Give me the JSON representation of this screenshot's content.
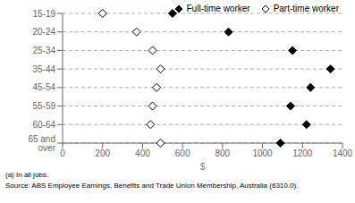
{
  "chart_data": {
    "type": "dot",
    "orientation": "horizontal",
    "categories": [
      "15-19",
      "20-24",
      "25-34",
      "35-44",
      "45-54",
      "55-59",
      "60-64",
      "65 and over"
    ],
    "series": [
      {
        "name": "Full-time worker",
        "color": "black",
        "marker": "diamond",
        "values": [
          550,
          830,
          1150,
          1340,
          1240,
          1140,
          1220,
          1090
        ]
      },
      {
        "name": "Part-time worker",
        "color": "white",
        "marker": "diamond",
        "values": [
          200,
          370,
          450,
          490,
          470,
          450,
          440,
          490
        ]
      }
    ],
    "xlabel": "$",
    "xlim": [
      0,
      1400
    ],
    "xticks": [
      0,
      200,
      400,
      600,
      800,
      1000,
      1200,
      1400
    ],
    "grid": true,
    "legend": "upper right",
    "annotations": [
      "(a) In all jobs.",
      "Source: ABS Employee Earnings, Benefits and Trade Union Membership, Australia (6310.0)."
    ]
  }
}
